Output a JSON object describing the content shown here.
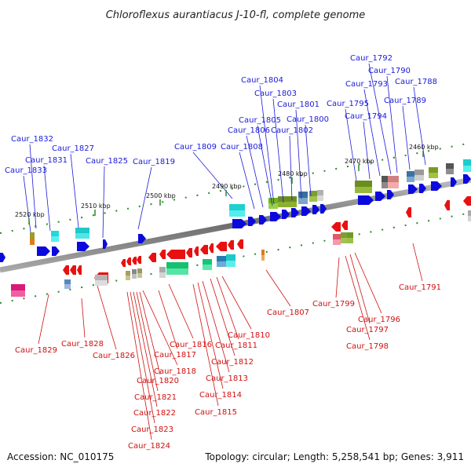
{
  "title": "Chloroflexus aurantiacus J-10-fl, complete genome",
  "footer": {
    "accession": "Accession: NC_010175",
    "summary": "Topology: circular; Length: 5,258,541 bp; Genes: 3,911"
  },
  "colors": {
    "forward": "#0a0adc",
    "reverse": "#e81010",
    "label_top": "#1a1adb",
    "label_bottom": "#d01010",
    "backbone": "#777777",
    "ticks": "#2a8a2a"
  },
  "scale_ticks": [
    "2520 kbp",
    "2510 kbp",
    "2500 kbp",
    "2490 kbp",
    "2480 kbp",
    "2470 kbp",
    "2460 kbp"
  ],
  "top_labels": [
    "Caur_1832",
    "Caur_1833",
    "Caur_1831",
    "Caur_1827",
    "Caur_1825",
    "Caur_1819",
    "Caur_1809",
    "Caur_1808",
    "Caur_1806",
    "Caur_1805",
    "Caur_1804",
    "Caur_1803",
    "Caur_1802",
    "Caur_1801",
    "Caur_1800",
    "Caur_1795",
    "Caur_1794",
    "Caur_1793",
    "Caur_1792",
    "Caur_1790",
    "Caur_1789",
    "Caur_1788"
  ],
  "bottom_labels": [
    "Caur_1829",
    "Caur_1828",
    "Caur_1826",
    "Caur_1824",
    "Caur_1823",
    "Caur_1822",
    "Caur_1821",
    "Caur_1820",
    "Caur_1818",
    "Caur_1817",
    "Caur_1816",
    "Caur_1815",
    "Caur_1814",
    "Caur_1813",
    "Caur_1812",
    "Caur_1811",
    "Caur_1810",
    "Caur_1807",
    "Caur_1799",
    "Caur_1798",
    "Caur_1797",
    "Caur_1796",
    "Caur_1791"
  ]
}
